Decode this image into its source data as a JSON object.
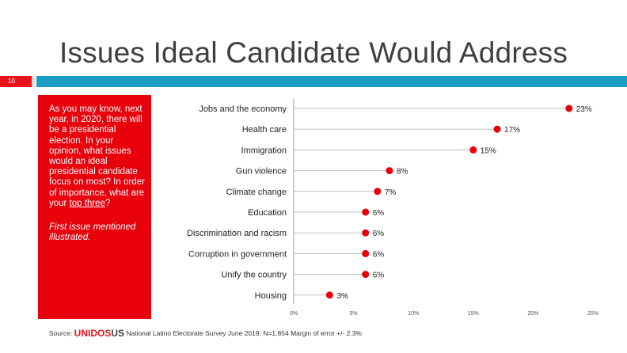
{
  "slide": {
    "title": "Issues Ideal Candidate Would Address",
    "number": "10"
  },
  "panel": {
    "question_pre": "As you may know, next year, in 2020, there will be a presidential election. In your opinion, what issues would an ideal presidential candidate focus on most? In order of importance, what are your ",
    "question_link": "top three",
    "question_post": "?",
    "note": "First issue mentioned illustrated."
  },
  "chart_data": {
    "type": "dot",
    "categories": [
      "Jobs and the economy",
      "Health care",
      "Immigration",
      "Gun violence",
      "Climate change",
      "Education",
      "Discrimination and racism",
      "Corruption in government",
      "Unify the country",
      "Housing"
    ],
    "values": [
      23,
      17,
      15,
      8,
      7,
      6,
      6,
      6,
      6,
      3
    ],
    "value_labels": [
      "23%",
      "17%",
      "15%",
      "8%",
      "7%",
      "6%",
      "6%",
      "6%",
      "6%",
      "3%"
    ],
    "xlim": [
      0,
      25
    ],
    "xticks": [
      "0%",
      "5%",
      "10%",
      "15%",
      "20%",
      "25%"
    ],
    "marker_color": "#e8000b",
    "line_color": "#bfbfbf"
  },
  "source": {
    "prefix": "Source:",
    "brand_a": "UNIDOS",
    "brand_b": "US",
    "text": "National Latino Electorate Survey June 2019; N=1,854  Margin of error +/- 2.3%"
  },
  "colors": {
    "accent_red": "#e8000b",
    "accent_teal": "#1c9ec4"
  }
}
